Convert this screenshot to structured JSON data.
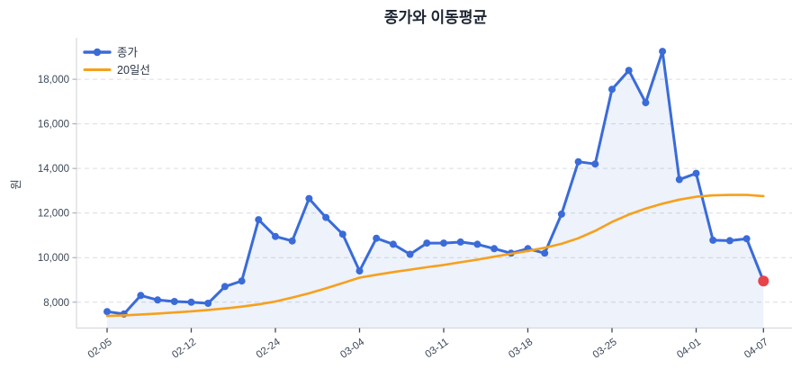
{
  "title": "종가와 이동평균",
  "ylabel": "원",
  "legend": {
    "close_label": "종가",
    "ma_label": "20일선"
  },
  "colors": {
    "close_line": "#3A6BD8",
    "ma_line": "#F6A01B",
    "last_point": "#E8434B",
    "area_fill": "rgba(58,107,216,0.09)",
    "gridline": "#dcdce2",
    "spine": "#d7d9de",
    "tick_mark": "#3C4758",
    "y_tick_mark": "#9aa2ad",
    "tick_text": "#3C4758",
    "title_text": "#1D2532",
    "legend_text": "#2B3546"
  },
  "chart_data": {
    "type": "line",
    "title": "종가와 이동평균",
    "xlabel": "",
    "ylabel": "원",
    "grid": true,
    "legend_position": "upper-left",
    "ylim": [
      6840,
      19860
    ],
    "y_ticks": [
      8000,
      10000,
      12000,
      14000,
      16000,
      18000
    ],
    "x_tick_labels": [
      "02-05",
      "02-12",
      "02-24",
      "03-04",
      "03-11",
      "03-18",
      "03-25",
      "04-01",
      "04-07"
    ],
    "x_tick_indices": [
      0,
      5,
      10,
      15,
      20,
      25,
      30,
      35,
      39
    ],
    "series": [
      {
        "name": "종가",
        "color": "#3A6BD8",
        "marker": "circle",
        "fill_under": true,
        "last_point_highlight_color": "#E8434B",
        "values": [
          7580,
          7470,
          8300,
          8100,
          8030,
          8000,
          7950,
          8700,
          8950,
          11700,
          10950,
          10750,
          12650,
          11800,
          11050,
          9400,
          10870,
          10600,
          10150,
          10650,
          10650,
          10700,
          10600,
          10400,
          10200,
          10400,
          10200,
          11950,
          14300,
          14200,
          17550,
          18400,
          16950,
          19250,
          13500,
          13780,
          10780,
          10760,
          10850,
          8950
        ]
      },
      {
        "name": "20일선",
        "color": "#F6A01B",
        "marker": "none",
        "fill_under": false,
        "values": [
          7380,
          7410,
          7450,
          7490,
          7540,
          7590,
          7650,
          7720,
          7800,
          7900,
          8030,
          8210,
          8400,
          8620,
          8860,
          9100,
          9230,
          9350,
          9460,
          9570,
          9670,
          9790,
          9910,
          10040,
          10170,
          10300,
          10440,
          10620,
          10870,
          11200,
          11600,
          11930,
          12200,
          12420,
          12600,
          12730,
          12790,
          12810,
          12810,
          12760
        ]
      }
    ]
  }
}
